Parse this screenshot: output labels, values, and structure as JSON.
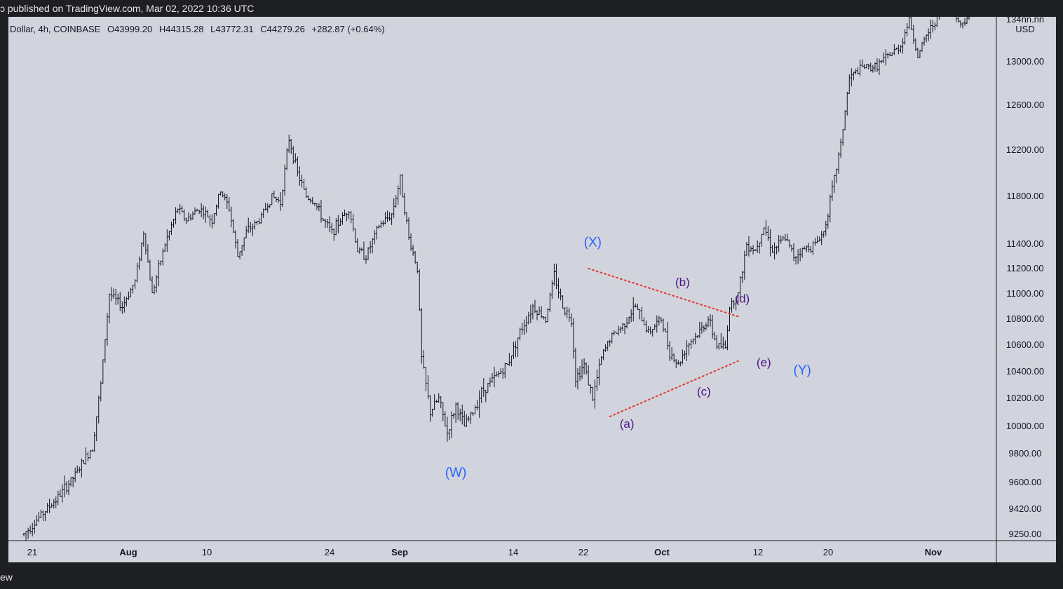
{
  "header": {
    "published": "ɔ published on TradingView.com, Mar 02, 2022 10:36 UTC"
  },
  "footer": {
    "brand": "ew"
  },
  "legend": {
    "symbol": "Dollar, 4h, COINBASE",
    "open": "O43999.20",
    "high": "H44315.28",
    "low": "L43772.31",
    "close": "C44279.26",
    "change": "+282.87 (+0.64%)"
  },
  "colors": {
    "background": "#d1d4dc",
    "bar": "#131722",
    "wave_primary": "#2962ff",
    "wave_minor": "#4a148c",
    "trendline": "#e53935"
  },
  "chart_data": {
    "type": "bar",
    "interval": "4h",
    "exchange": "COINBASE",
    "currency": "USD",
    "y_axis_ticks": [
      13400,
      13000,
      12600,
      12200,
      11800,
      11400,
      11200,
      11000,
      10800,
      10600,
      10400,
      10200,
      10000,
      9800,
      9600,
      9420,
      9250
    ],
    "y_axis_labels": [
      "134nn.nn",
      "13000.00",
      "12600.00",
      "12200.00",
      "11800.00",
      "11400.00",
      "11200.00",
      "11000.00",
      "10800.00",
      "10600.00",
      "10400.00",
      "10200.00",
      "10000.00",
      "9800.00",
      "9600.00",
      "9420.00",
      "9250.00"
    ],
    "currency_label": "USD",
    "x_axis_labels": [
      "21",
      "Aug",
      "10",
      "24",
      "Sep",
      "14",
      "22",
      "Oct",
      "12",
      "20",
      "Nov"
    ],
    "waypoints": [
      {
        "t": 0,
        "p": 9250
      },
      {
        "t": 4,
        "p": 9380
      },
      {
        "t": 8,
        "p": 9500
      },
      {
        "t": 12,
        "p": 9650
      },
      {
        "t": 16,
        "p": 9850
      },
      {
        "t": 18,
        "p": 10300
      },
      {
        "t": 20,
        "p": 11000
      },
      {
        "t": 23,
        "p": 10900
      },
      {
        "t": 26,
        "p": 11100
      },
      {
        "t": 28,
        "p": 11500
      },
      {
        "t": 30,
        "p": 11000
      },
      {
        "t": 33,
        "p": 11400
      },
      {
        "t": 36,
        "p": 11700
      },
      {
        "t": 38,
        "p": 11600
      },
      {
        "t": 41,
        "p": 11700
      },
      {
        "t": 44,
        "p": 11600
      },
      {
        "t": 46,
        "p": 11850
      },
      {
        "t": 48,
        "p": 11700
      },
      {
        "t": 50,
        "p": 11300
      },
      {
        "t": 52,
        "p": 11500
      },
      {
        "t": 55,
        "p": 11600
      },
      {
        "t": 58,
        "p": 11800
      },
      {
        "t": 60,
        "p": 11750
      },
      {
        "t": 62,
        "p": 12300
      },
      {
        "t": 64,
        "p": 12000
      },
      {
        "t": 66,
        "p": 11800
      },
      {
        "t": 68,
        "p": 11750
      },
      {
        "t": 70,
        "p": 11600
      },
      {
        "t": 72,
        "p": 11500
      },
      {
        "t": 74,
        "p": 11600
      },
      {
        "t": 76,
        "p": 11700
      },
      {
        "t": 78,
        "p": 11350
      },
      {
        "t": 80,
        "p": 11300
      },
      {
        "t": 83,
        "p": 11550
      },
      {
        "t": 86,
        "p": 11650
      },
      {
        "t": 88,
        "p": 11950
      },
      {
        "t": 90,
        "p": 11450
      },
      {
        "t": 92,
        "p": 11200
      },
      {
        "t": 93,
        "p": 10500
      },
      {
        "t": 95,
        "p": 10100
      },
      {
        "t": 97,
        "p": 10200
      },
      {
        "t": 99,
        "p": 9950
      },
      {
        "t": 101,
        "p": 10150
      },
      {
        "t": 103,
        "p": 10000
      },
      {
        "t": 105,
        "p": 10100
      },
      {
        "t": 107,
        "p": 10250
      },
      {
        "t": 110,
        "p": 10350
      },
      {
        "t": 113,
        "p": 10450
      },
      {
        "t": 116,
        "p": 10700
      },
      {
        "t": 119,
        "p": 10900
      },
      {
        "t": 122,
        "p": 10800
      },
      {
        "t": 124,
        "p": 11150
      },
      {
        "t": 126,
        "p": 10900
      },
      {
        "t": 128,
        "p": 10800
      },
      {
        "t": 129,
        "p": 10350
      },
      {
        "t": 131,
        "p": 10450
      },
      {
        "t": 133,
        "p": 10200
      },
      {
        "t": 135,
        "p": 10500
      },
      {
        "t": 137,
        "p": 10650
      },
      {
        "t": 140,
        "p": 10750
      },
      {
        "t": 143,
        "p": 10900
      },
      {
        "t": 146,
        "p": 10700
      },
      {
        "t": 149,
        "p": 10800
      },
      {
        "t": 151,
        "p": 10550
      },
      {
        "t": 153,
        "p": 10450
      },
      {
        "t": 155,
        "p": 10600
      },
      {
        "t": 158,
        "p": 10700
      },
      {
        "t": 160,
        "p": 10800
      },
      {
        "t": 162,
        "p": 10600
      },
      {
        "t": 164,
        "p": 10580
      },
      {
        "t": 165,
        "p": 10900
      },
      {
        "t": 167,
        "p": 11000
      },
      {
        "t": 169,
        "p": 11400
      },
      {
        "t": 171,
        "p": 11350
      },
      {
        "t": 173,
        "p": 11550
      },
      {
        "t": 175,
        "p": 11350
      },
      {
        "t": 178,
        "p": 11450
      },
      {
        "t": 180,
        "p": 11300
      },
      {
        "t": 182,
        "p": 11350
      },
      {
        "t": 185,
        "p": 11400
      },
      {
        "t": 187,
        "p": 11500
      },
      {
        "t": 189,
        "p": 11850
      },
      {
        "t": 191,
        "p": 12250
      },
      {
        "t": 193,
        "p": 12850
      },
      {
        "t": 196,
        "p": 12950
      },
      {
        "t": 199,
        "p": 12950
      },
      {
        "t": 202,
        "p": 13050
      },
      {
        "t": 205,
        "p": 13150
      },
      {
        "t": 207,
        "p": 13400
      },
      {
        "t": 209,
        "p": 13050
      },
      {
        "t": 211,
        "p": 13250
      },
      {
        "t": 214,
        "p": 13450
      },
      {
        "t": 217,
        "p": 13500
      },
      {
        "t": 219,
        "p": 13350
      },
      {
        "t": 221,
        "p": 13450
      }
    ],
    "annotations": [
      {
        "label": "(W)",
        "t": 101,
        "p": 9640,
        "style": "primary"
      },
      {
        "label": "(X)",
        "t": 133,
        "p": 11380,
        "style": "primary"
      },
      {
        "label": "(Y)",
        "t": 182,
        "p": 10380,
        "style": "primary"
      },
      {
        "label": "(a)",
        "t": 141,
        "p": 9990,
        "style": "minor"
      },
      {
        "label": "(b)",
        "t": 154,
        "p": 11060,
        "style": "minor"
      },
      {
        "label": "(c)",
        "t": 159,
        "p": 10220,
        "style": "minor"
      },
      {
        "label": "(d)",
        "t": 168,
        "p": 10930,
        "style": "minor"
      },
      {
        "label": "(e)",
        "t": 173,
        "p": 10440,
        "style": "minor"
      }
    ],
    "trendlines": [
      {
        "from": {
          "t": 132,
          "p": 11200
        },
        "to": {
          "t": 167,
          "p": 10820
        }
      },
      {
        "from": {
          "t": 137,
          "p": 10070
        },
        "to": {
          "t": 167,
          "p": 10480
        }
      }
    ]
  }
}
